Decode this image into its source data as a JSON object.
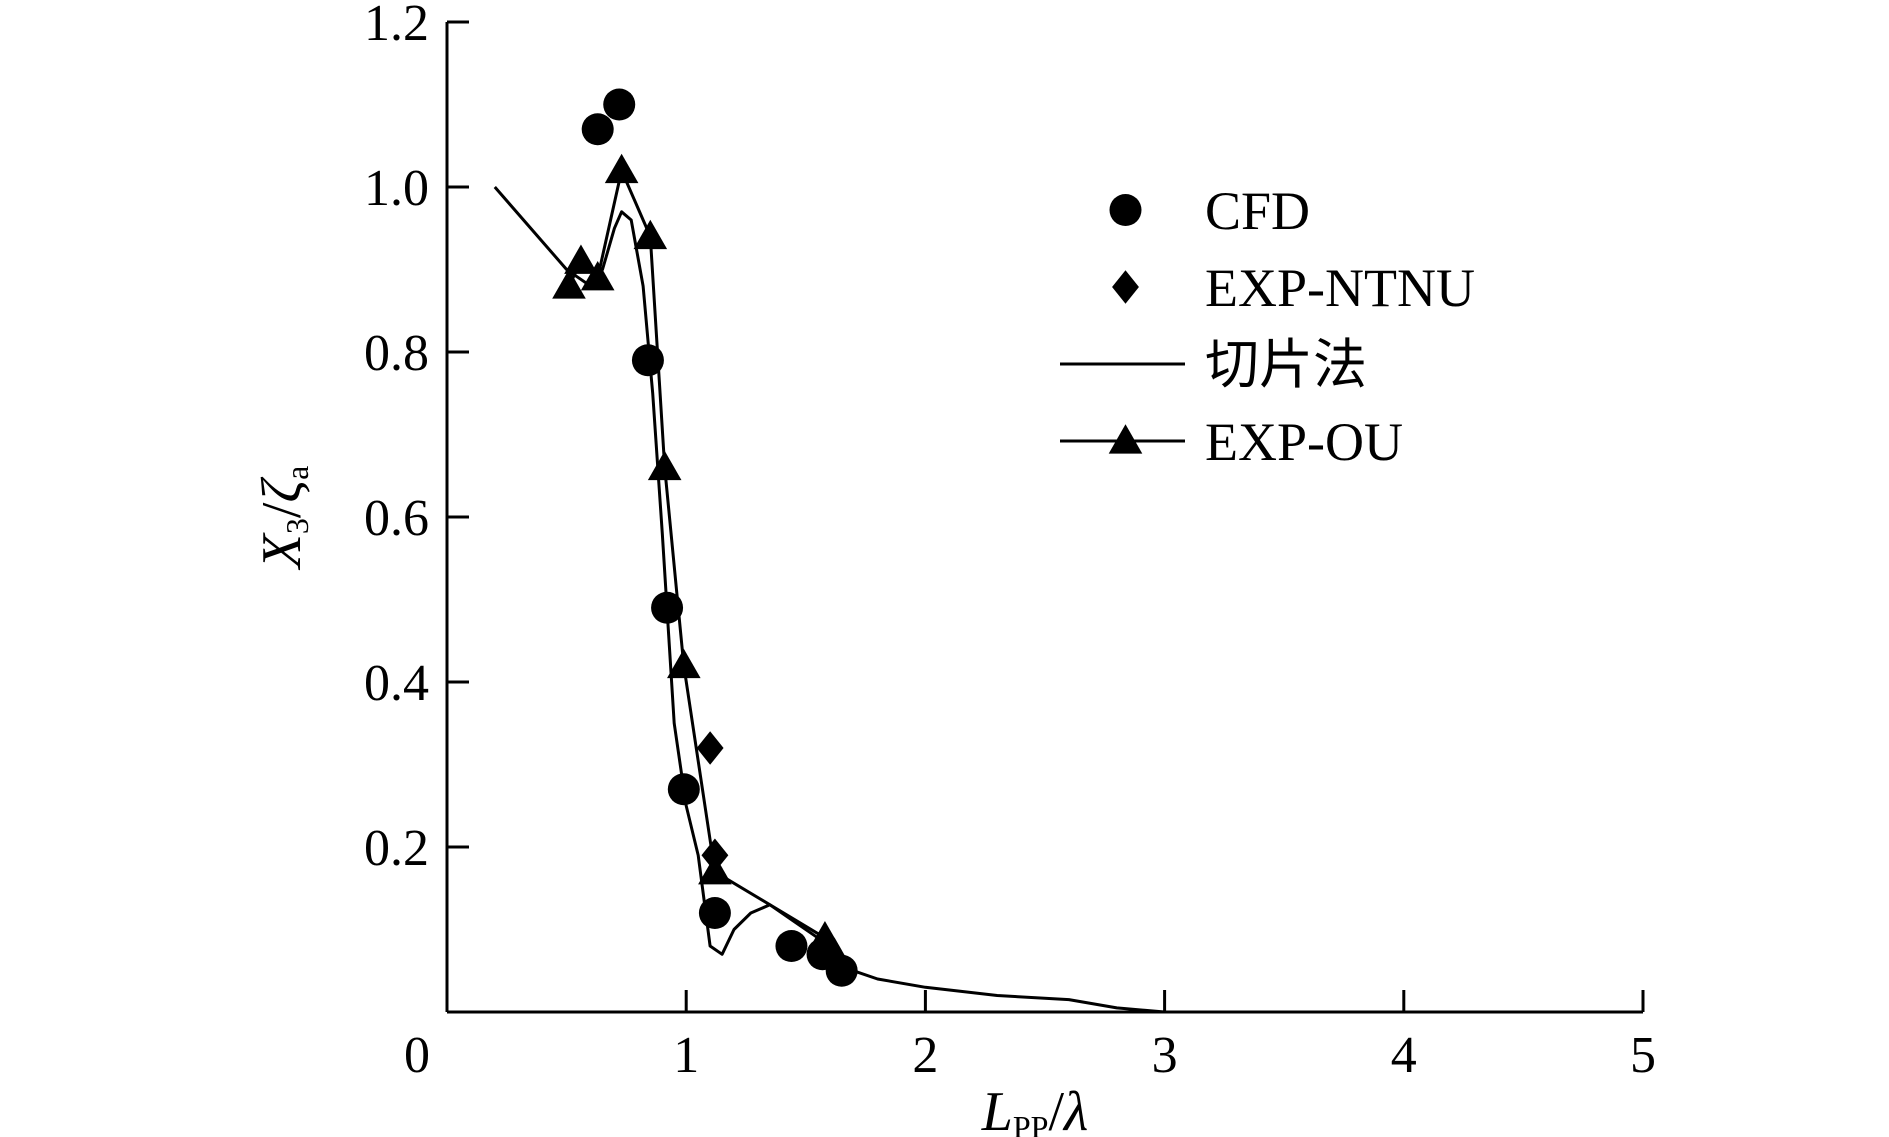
{
  "chart_data": {
    "type": "line",
    "title": "",
    "xlabel": {
      "main": "L",
      "sub": "PP",
      "rest": "/λ"
    },
    "ylabel": {
      "main": "X",
      "sub": "3",
      "mid": "/ζ",
      "sub2": "a"
    },
    "xlim": [
      0,
      5
    ],
    "ylim": [
      0,
      1.2
    ],
    "x_ticks": [
      0,
      1,
      2,
      3,
      4,
      5
    ],
    "x_tick_labels": [
      "0",
      "1",
      "2",
      "3",
      "4",
      "5"
    ],
    "y_ticks": [
      0.2,
      0.4,
      0.6,
      0.8,
      1.0,
      1.2
    ],
    "y_tick_labels": [
      "0.2",
      "0.4",
      "0.6",
      "0.8",
      "1.0",
      "1.2"
    ],
    "grid": false,
    "legend_position": "top-right",
    "color": "#000000",
    "series": [
      {
        "name": "CFD",
        "marker": "circle",
        "line": false,
        "x": [
          0.63,
          0.72,
          0.84,
          0.92,
          0.99,
          1.12,
          1.44,
          1.57,
          1.65
        ],
        "y": [
          1.07,
          1.1,
          0.79,
          0.49,
          0.27,
          0.12,
          0.08,
          0.07,
          0.05
        ]
      },
      {
        "name": "EXP-NTNU",
        "marker": "diamond",
        "line": false,
        "x": [
          1.1,
          1.12
        ],
        "y": [
          0.32,
          0.19
        ]
      },
      {
        "name": "切片法",
        "marker": "none",
        "line": true,
        "x": [
          0.2,
          0.5,
          0.55,
          0.6,
          0.65,
          0.7,
          0.73,
          0.77,
          0.82,
          0.86,
          0.9,
          0.95,
          1.0,
          1.05,
          1.1,
          1.15,
          1.2,
          1.27,
          1.35,
          1.45,
          1.55,
          1.62,
          1.7,
          1.8,
          2.0,
          2.3,
          2.6,
          2.8,
          3.0,
          4.0,
          4.8
        ],
        "y": [
          1.0,
          0.9,
          0.89,
          0.88,
          0.9,
          0.95,
          0.97,
          0.96,
          0.88,
          0.75,
          0.58,
          0.35,
          0.25,
          0.19,
          0.08,
          0.07,
          0.1,
          0.12,
          0.13,
          0.11,
          0.09,
          0.07,
          0.05,
          0.04,
          0.03,
          0.02,
          0.015,
          0.005,
          0.0,
          0.0,
          0.0
        ]
      },
      {
        "name": "EXP-OU",
        "marker": "triangle",
        "line": true,
        "x": [
          0.51,
          0.56,
          0.63,
          0.73,
          0.85,
          0.91,
          0.99,
          1.12,
          1.58,
          1.62
        ],
        "y": [
          0.88,
          0.91,
          0.89,
          1.02,
          0.94,
          0.66,
          0.42,
          0.17,
          0.09,
          0.07
        ]
      }
    ]
  }
}
